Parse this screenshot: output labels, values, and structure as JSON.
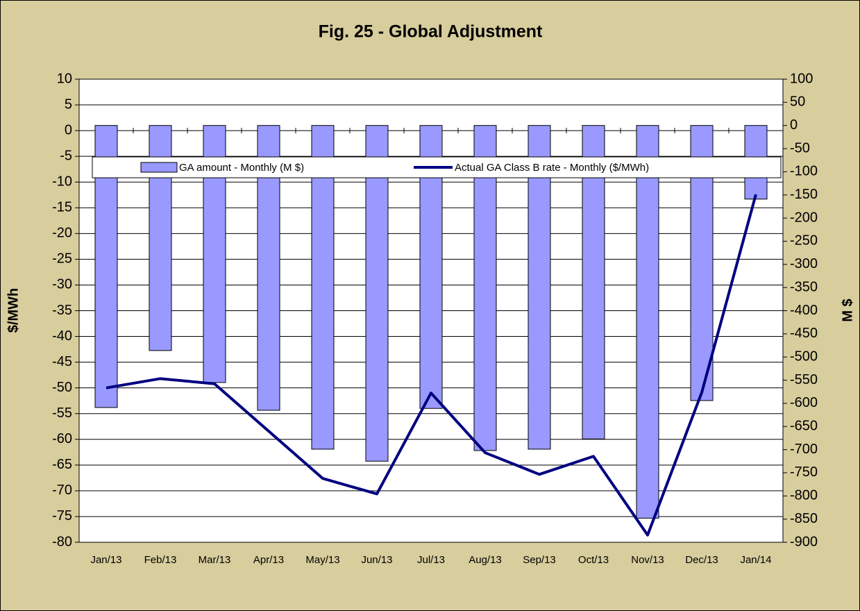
{
  "chart_data": {
    "type": "combo",
    "title": "Fig. 25 - Global Adjustment",
    "y_label": "$/MWh",
    "y2_label": "M $",
    "categories": [
      "Jan/13",
      "Feb/13",
      "Mar/13",
      "Apr/13",
      "May/13",
      "Jun/13",
      "Jul/13",
      "Aug/13",
      "Sep/13",
      "Oct/13",
      "Nov/13",
      "Dec/13",
      "Jan/14"
    ],
    "series": [
      {
        "name": "GA amount - Monthly (M $)",
        "type": "bar",
        "axis": "y2",
        "color": "#9999ff",
        "values": [
          -609,
          -486,
          -555,
          -615,
          -699,
          -725,
          -611,
          -702,
          -699,
          -677,
          -848,
          -594,
          -159
        ]
      },
      {
        "name": "Actual GA Class B rate - Monthly ($/MWh)",
        "type": "line",
        "axis": "y",
        "color": "#000080",
        "values": [
          -50.0,
          -48.2,
          -49.2,
          -58.4,
          -67.6,
          -70.6,
          -51.0,
          -62.6,
          -66.8,
          -63.3,
          -78.6,
          -50.9,
          -12.4
        ]
      }
    ],
    "ylim": [
      -80,
      10
    ],
    "yticks": [
      -80,
      -75,
      -70,
      -65,
      -60,
      -55,
      -50,
      -45,
      -40,
      -35,
      -30,
      -25,
      -20,
      -15,
      -10,
      -5,
      0,
      5,
      10
    ],
    "y2lim": [
      -900,
      100
    ],
    "y2ticks": [
      -900,
      -850,
      -800,
      -750,
      -700,
      -650,
      -600,
      -550,
      -500,
      -450,
      -400,
      -350,
      -300,
      -250,
      -200,
      -150,
      -100,
      -50,
      0,
      50,
      100
    ],
    "grid": true
  }
}
